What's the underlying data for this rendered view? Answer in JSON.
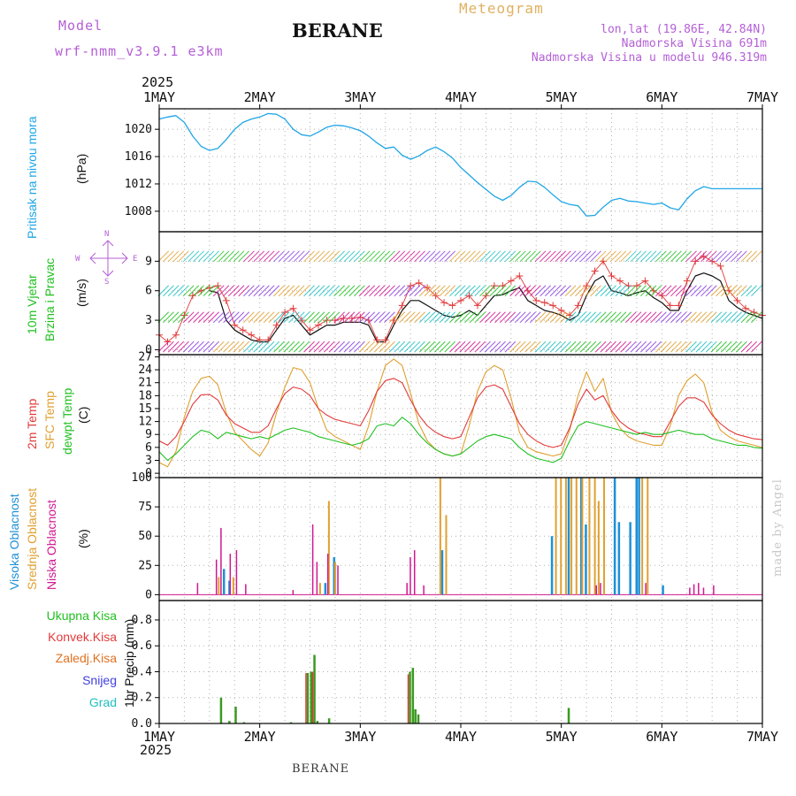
{
  "header": {
    "model_label": "Model",
    "model_name": "wrf-nmm_v3.9.1 e3km",
    "product": "Meteogram",
    "station": "BERANE",
    "lonlat": "lon,lat (19.86E, 42.84N)",
    "elevation": "Nadmorska Visina 691m",
    "model_elevation": "Nadmorska Visina u modelu 946.319m",
    "year_top": "2025",
    "year_bottom": "2025",
    "footer_station": "BERANE",
    "made_by": "made by Angel"
  },
  "colors": {
    "pressure": "#1fa6e6",
    "windspeed": "#e23a3a",
    "gust": "#111111",
    "t2m": "#e23a3a",
    "sfc": "#e0a030",
    "dewpt": "#20c020",
    "cloud_high": "#1e90d6",
    "cloud_mid": "#e0a030",
    "cloud_low": "#d01890",
    "precip_total": "#3a9a20",
    "precip_conv": "#e23a3a",
    "precip_frozen": "#e07020",
    "snow": "#4040e0",
    "hail": "#20c0c0",
    "wind_legend": "#b45fd6",
    "panel_label_blue": "#1fa6e6",
    "panel_label_green": "#20c020"
  },
  "time_axis": {
    "labels": [
      "1MAY",
      "2MAY",
      "3MAY",
      "4MAY",
      "5MAY",
      "6MAY",
      "7MAY"
    ],
    "range_hours": [
      0,
      144
    ]
  },
  "panel_labels": {
    "pressure": [
      "Pritisak na nivou mora",
      "(hPa)"
    ],
    "wind": [
      "10m Vjetar",
      "Brzina i Pravac",
      "(m/s)"
    ],
    "compass": {
      "n": "N",
      "s": "S",
      "e": "E",
      "w": "W"
    },
    "temp": [
      "2m Temp",
      "SFC Temp",
      "dewpt Temp",
      "(C)"
    ],
    "cloud": [
      "Visoka Oblacnost",
      "Srednja Oblacnost",
      "Niska Oblacnost",
      "(%)"
    ],
    "precip": [
      "Ukupna Kisa",
      "Konvek.Kisa",
      "Zaledj.Kisa",
      "Snijeg",
      "Grad",
      "1hr Precip (mm)"
    ]
  },
  "chart_data": [
    {
      "type": "line",
      "title": "Pritisak na nivou mora",
      "ylabel": "(hPa)",
      "ylim": [
        1005,
        1023
      ],
      "yticks": [
        1008,
        1012,
        1016,
        1020
      ],
      "x": [
        0,
        2,
        4,
        6,
        8,
        10,
        12,
        14,
        16,
        18,
        20,
        22,
        24,
        26,
        28,
        30,
        32,
        34,
        36,
        38,
        40,
        42,
        44,
        46,
        48,
        50,
        52,
        54,
        56,
        58,
        60,
        62,
        64,
        66,
        68,
        70,
        72,
        74,
        76,
        78,
        80,
        82,
        84,
        86,
        88,
        90,
        92,
        94,
        96,
        98,
        100,
        102,
        104,
        106,
        108,
        110,
        112,
        114,
        116,
        118,
        120,
        122,
        124,
        126,
        128,
        130,
        132,
        134,
        136,
        138,
        140,
        142,
        144
      ],
      "series": [
        {
          "name": "pressure",
          "values": [
            1021.5,
            1021.8,
            1022.0,
            1021.0,
            1019.0,
            1017.5,
            1016.9,
            1017.2,
            1018.5,
            1020.0,
            1021.0,
            1021.5,
            1021.8,
            1022.3,
            1022.2,
            1021.5,
            1020.0,
            1019.2,
            1019.0,
            1019.6,
            1020.3,
            1020.6,
            1020.5,
            1020.2,
            1019.8,
            1019.0,
            1018.0,
            1017.2,
            1017.4,
            1016.2,
            1015.6,
            1016.1,
            1016.9,
            1017.4,
            1016.7,
            1015.8,
            1014.4,
            1013.3,
            1012.2,
            1011.2,
            1010.2,
            1009.6,
            1010.3,
            1011.5,
            1012.4,
            1012.3,
            1011.5,
            1010.4,
            1009.4,
            1009.0,
            1008.8,
            1007.3,
            1007.4,
            1008.6,
            1009.6,
            1009.9,
            1009.5,
            1009.4,
            1009.2,
            1009.0,
            1009.2,
            1008.5,
            1008.2,
            1009.8,
            1011.0,
            1011.6,
            1011.3,
            1011.3,
            1011.3,
            1011.3,
            1011.3,
            1011.3,
            1011.3
          ]
        }
      ]
    },
    {
      "type": "line",
      "title": "10m Vjetar Brzina i Pravac",
      "ylabel": "(m/s)",
      "ylim": [
        -0.5,
        12
      ],
      "yticks": [
        0,
        3,
        6,
        9
      ],
      "x": [
        0,
        2,
        4,
        6,
        8,
        10,
        12,
        14,
        16,
        18,
        20,
        22,
        24,
        26,
        28,
        30,
        32,
        34,
        36,
        38,
        40,
        42,
        44,
        46,
        48,
        50,
        52,
        54,
        56,
        58,
        60,
        62,
        64,
        66,
        68,
        70,
        72,
        74,
        76,
        78,
        80,
        82,
        84,
        86,
        88,
        90,
        92,
        94,
        96,
        98,
        100,
        102,
        104,
        106,
        108,
        110,
        112,
        114,
        116,
        118,
        120,
        122,
        124,
        126,
        128,
        130,
        132,
        134,
        136,
        138,
        140,
        142,
        144
      ],
      "series": [
        {
          "name": "wind speed",
          "values": [
            1.5,
            0.8,
            1.5,
            3.5,
            5.5,
            6.0,
            6.3,
            6.5,
            5.0,
            2.5,
            2.0,
            1.5,
            1.0,
            1.0,
            2.5,
            3.8,
            4.2,
            3.0,
            2.0,
            2.5,
            3.0,
            3.0,
            3.2,
            3.2,
            3.3,
            3.0,
            1.0,
            1.0,
            3.0,
            4.5,
            6.5,
            6.8,
            6.3,
            5.5,
            4.8,
            4.5,
            5.0,
            5.5,
            4.5,
            5.5,
            6.5,
            6.5,
            7.0,
            7.5,
            6.0,
            5.0,
            4.8,
            4.5,
            4.0,
            3.5,
            4.5,
            6.5,
            8.0,
            9.0,
            7.5,
            7.0,
            6.5,
            6.5,
            7.0,
            6.0,
            5.5,
            4.5,
            4.5,
            7.0,
            9.0,
            9.5,
            9.0,
            8.5,
            6.0,
            5.0,
            4.2,
            3.8,
            3.5
          ]
        },
        {
          "name": "gust",
          "values": [
            null,
            null,
            null,
            null,
            null,
            null,
            6.0,
            5.8,
            3.0,
            2.0,
            1.5,
            1.0,
            0.8,
            0.8,
            2.0,
            3.2,
            3.5,
            2.5,
            1.5,
            2.0,
            2.5,
            2.5,
            2.8,
            2.8,
            2.8,
            2.5,
            0.8,
            0.8,
            2.5,
            4.0,
            5.0,
            5.0,
            4.5,
            4.0,
            3.5,
            3.3,
            3.5,
            4.0,
            3.5,
            4.5,
            5.5,
            5.6,
            6.0,
            6.3,
            5.0,
            4.5,
            4.0,
            3.8,
            3.5,
            3.0,
            3.5,
            5.5,
            7.0,
            7.5,
            6.0,
            5.8,
            5.5,
            5.8,
            6.0,
            5.3,
            4.8,
            4.0,
            4.0,
            6.0,
            7.5,
            7.8,
            7.5,
            7.0,
            5.0,
            4.3,
            3.8,
            3.5,
            3.2
          ]
        }
      ]
    },
    {
      "type": "line",
      "title": "2m Temp / SFC Temp / dewpt Temp",
      "ylabel": "(C)",
      "ylim": [
        -1,
        27.5
      ],
      "yticks": [
        0,
        3,
        6,
        9,
        12,
        15,
        18,
        21,
        24,
        27
      ],
      "x": [
        0,
        2,
        4,
        6,
        8,
        10,
        12,
        14,
        16,
        18,
        20,
        22,
        24,
        26,
        28,
        30,
        32,
        34,
        36,
        38,
        40,
        42,
        44,
        46,
        48,
        50,
        52,
        54,
        56,
        58,
        60,
        62,
        64,
        66,
        68,
        70,
        72,
        74,
        76,
        78,
        80,
        82,
        84,
        86,
        88,
        90,
        92,
        94,
        96,
        98,
        100,
        102,
        104,
        106,
        108,
        110,
        112,
        114,
        116,
        118,
        120,
        122,
        124,
        126,
        128,
        130,
        132,
        134,
        136,
        138,
        140,
        142,
        144
      ],
      "series": [
        {
          "name": "2m Temp",
          "values": [
            7.5,
            6.5,
            8.5,
            12.0,
            16.0,
            18.2,
            18.3,
            17.0,
            13.5,
            11.5,
            10.5,
            9.5,
            9.5,
            11.0,
            15.0,
            18.5,
            20.0,
            19.5,
            18.0,
            15.0,
            13.5,
            12.5,
            12.0,
            11.5,
            11.0,
            14.5,
            19.0,
            21.5,
            22.0,
            21.0,
            17.0,
            13.5,
            11.0,
            9.5,
            8.5,
            8.0,
            8.5,
            13.0,
            17.5,
            20.0,
            20.5,
            19.5,
            15.5,
            11.5,
            9.0,
            7.5,
            6.5,
            6.0,
            6.5,
            10.5,
            16.0,
            19.5,
            17.0,
            18.0,
            14.5,
            12.0,
            10.5,
            9.5,
            9.0,
            8.5,
            8.5,
            12.0,
            15.5,
            17.5,
            17.5,
            16.5,
            13.5,
            11.5,
            10.0,
            9.0,
            8.5,
            8.0,
            7.8
          ]
        },
        {
          "name": "SFC Temp",
          "values": [
            2.5,
            1.5,
            5.0,
            13.0,
            19.0,
            22.0,
            22.5,
            20.5,
            14.0,
            9.5,
            7.5,
            5.5,
            4.0,
            7.0,
            14.0,
            20.0,
            24.5,
            24.0,
            21.0,
            15.0,
            10.0,
            8.5,
            7.5,
            6.5,
            5.5,
            11.0,
            19.0,
            25.0,
            26.5,
            25.0,
            18.5,
            11.5,
            7.5,
            5.5,
            4.5,
            4.0,
            4.5,
            11.0,
            19.0,
            23.5,
            25.0,
            24.0,
            17.5,
            9.5,
            6.0,
            5.0,
            4.5,
            4.0,
            4.5,
            10.0,
            18.0,
            23.5,
            19.0,
            22.0,
            14.0,
            10.5,
            8.5,
            7.5,
            7.0,
            6.5,
            6.5,
            11.0,
            18.0,
            21.5,
            23.0,
            21.0,
            14.0,
            10.0,
            8.5,
            7.5,
            7.0,
            6.5,
            6.0
          ]
        },
        {
          "name": "dewpt Temp",
          "values": [
            5.0,
            3.0,
            4.5,
            6.5,
            8.5,
            10.0,
            9.5,
            8.0,
            9.5,
            9.0,
            8.5,
            8.0,
            8.5,
            8.0,
            9.0,
            10.0,
            10.5,
            10.0,
            9.5,
            8.5,
            8.0,
            7.5,
            7.0,
            6.5,
            7.0,
            8.0,
            11.0,
            11.5,
            11.0,
            13.0,
            11.5,
            9.0,
            7.0,
            5.5,
            4.5,
            4.0,
            4.5,
            6.0,
            7.5,
            8.5,
            9.0,
            8.5,
            8.0,
            6.0,
            4.5,
            3.5,
            3.0,
            2.5,
            3.5,
            7.5,
            11.0,
            12.0,
            11.5,
            11.0,
            10.5,
            10.0,
            9.5,
            9.0,
            9.5,
            9.0,
            9.0,
            9.5,
            10.0,
            9.5,
            9.0,
            9.0,
            8.0,
            7.5,
            7.0,
            6.5,
            6.5,
            6.0,
            5.8
          ]
        }
      ]
    },
    {
      "type": "bar",
      "title": "Visoka / Srednja / Niska Oblacnost",
      "ylabel": "(%)",
      "ylim": [
        -5,
        100
      ],
      "yticks": [
        0,
        25,
        50,
        75,
        100
      ],
      "series": [
        {
          "name": "Visoka Oblacnost",
          "x": [
            15.2,
            16.5,
            39.4,
            41.5,
            67.3,
            93.5,
            97.5,
            100.5,
            101.6,
            108.5,
            109.5,
            112.2,
            113.7,
            114.3,
            120.0
          ],
          "values": [
            22,
            12,
            10,
            32,
            38,
            50,
            100,
            100,
            60,
            100,
            62,
            62,
            100,
            100,
            8
          ]
        },
        {
          "name": "Srednja Oblacnost",
          "x": [
            14.0,
            17.5,
            38.2,
            40.3,
            41.8,
            66.9,
            68.3,
            94.5,
            95.7,
            96.9,
            98.2,
            99.4,
            100.8,
            102.5,
            103.8,
            104.7,
            106.0,
            115.1,
            116.4
          ],
          "values": [
            15,
            15,
            10,
            80,
            28,
            100,
            68,
            100,
            100,
            100,
            100,
            100,
            100,
            100,
            100,
            80,
            100,
            100,
            100
          ]
        },
        {
          "name": "Niska Oblacnost",
          "x": [
            9.0,
            13.5,
            14.6,
            16.8,
            18.3,
            20.5,
            31.8,
            36.5,
            37.5,
            40.1,
            42.5,
            59.0,
            59.8,
            60.8,
            63.0,
            104.2,
            105.2,
            116.0,
            126.5,
            127.5,
            128.6,
            129.8,
            132.2
          ],
          "values": [
            10,
            30,
            57,
            35,
            38,
            9,
            4,
            60,
            28,
            35,
            25,
            10,
            32,
            38,
            8,
            8,
            10,
            10,
            6,
            9,
            10,
            6,
            8
          ]
        }
      ]
    },
    {
      "type": "bar",
      "title": "1hr Precip",
      "ylabel": "1hr Precip (mm)",
      "ylim": [
        0,
        0.95
      ],
      "yticks": [
        0.0,
        0.2,
        0.4,
        0.6,
        0.8
      ],
      "series": [
        {
          "name": "Ukupna Kisa",
          "x": [
            14.5,
            16.5,
            18.0,
            20.0,
            31.2,
            35.2,
            36.0,
            36.8,
            37.5,
            40.3,
            59.6,
            60.3,
            60.9,
            61.6,
            97.5
          ],
          "values": [
            0.2,
            0.02,
            0.13,
            0.01,
            0.01,
            0.39,
            0.4,
            0.53,
            0.02,
            0.04,
            0.4,
            0.43,
            0.11,
            0.07,
            0.12
          ]
        },
        {
          "name": "Konvek.Kisa",
          "x": [
            35.2,
            36.8,
            59.6
          ],
          "values": [
            0.39,
            0.4,
            0.38
          ]
        },
        {
          "name": "Zaledj.Kisa",
          "x": [],
          "values": []
        },
        {
          "name": "Snijeg",
          "x": [],
          "values": []
        },
        {
          "name": "Grad",
          "x": [],
          "values": []
        }
      ]
    }
  ]
}
